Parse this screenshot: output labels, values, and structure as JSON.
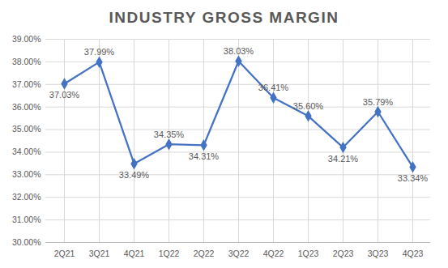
{
  "chart_data": {
    "type": "line",
    "title": "INDUSTRY GROSS MARGIN",
    "categories": [
      "2Q21",
      "3Q21",
      "4Q21",
      "1Q22",
      "2Q22",
      "3Q22",
      "4Q22",
      "1Q23",
      "2Q23",
      "3Q23",
      "4Q23"
    ],
    "values": [
      37.03,
      37.99,
      33.49,
      34.35,
      34.31,
      38.03,
      36.41,
      35.6,
      34.21,
      35.79,
      33.34
    ],
    "value_labels": [
      "37.03%",
      "37.99%",
      "33.49%",
      "34.35%",
      "34.31%",
      "38.03%",
      "36.41%",
      "35.60%",
      "34.21%",
      "35.79%",
      "33.34%"
    ],
    "color": "#4472c4",
    "marker": "diamond",
    "data_labels": true,
    "grid": true,
    "ylim": [
      30,
      39
    ],
    "yticks": [
      {
        "value": 30,
        "label": "30.00%"
      },
      {
        "value": 31,
        "label": "31.00%"
      },
      {
        "value": 32,
        "label": "32.00%"
      },
      {
        "value": 33,
        "label": "33.00%"
      },
      {
        "value": 34,
        "label": "34.00%"
      },
      {
        "value": 35,
        "label": "35.00%"
      },
      {
        "value": 36,
        "label": "36.00%"
      },
      {
        "value": 37,
        "label": "37.00%"
      },
      {
        "value": 38,
        "label": "38.00%"
      },
      {
        "value": 39,
        "label": "39.00%"
      }
    ]
  }
}
